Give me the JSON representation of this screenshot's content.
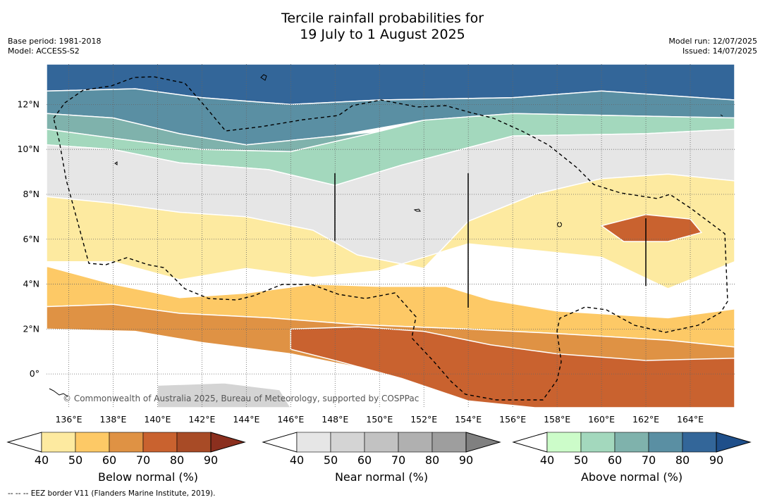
{
  "header": {
    "title_line1": "Tercile rainfall probabilities for",
    "title_line2": "19 July to 1 August 2025",
    "base_period": "Base period: 1981-2018",
    "model": "Model: ACCESS-S2",
    "model_run": "Model run: 12/07/2025",
    "issued": "Issued: 14/07/2025"
  },
  "map": {
    "lon_ticks": [
      "136°E",
      "138°E",
      "140°E",
      "142°E",
      "144°E",
      "146°E",
      "148°E",
      "150°E",
      "152°E",
      "154°E",
      "156°E",
      "158°E",
      "160°E",
      "162°E",
      "164°E"
    ],
    "lat_ticks": [
      "12°N",
      "10°N",
      "8°N",
      "6°N",
      "4°N",
      "2°N",
      "0°"
    ],
    "copyright": "© Commonwealth of Australia 2025, Bureau of Meteorology, supported by COSPPac"
  },
  "legend": {
    "ticks": [
      "40",
      "50",
      "60",
      "70",
      "80",
      "90"
    ],
    "bars": [
      {
        "label": "Below normal (%)",
        "colors": [
          "#ffffff",
          "#fdeaa0",
          "#fdc966",
          "#df9244",
          "#c9622f",
          "#a84b26",
          "#8b2f1e"
        ]
      },
      {
        "label": "Near normal (%)",
        "colors": [
          "#ffffff",
          "#e6e6e6",
          "#d4d4d4",
          "#c2c2c2",
          "#b0b0b0",
          "#9e9e9e",
          "#808080"
        ]
      },
      {
        "label": "Above normal (%)",
        "colors": [
          "#ffffff",
          "#ccfcc9",
          "#a3d8bd",
          "#7fb2ac",
          "#5a8fa3",
          "#336699",
          "#1f4f8a"
        ]
      }
    ]
  },
  "footnote": "--  --  -- EEZ border V11 (Flanders Marine Institute, 2019).",
  "chart_data": {
    "type": "heatmap",
    "title": "Tercile rainfall probabilities for 19 July to 1 August 2025",
    "xlabel": "",
    "ylabel": "",
    "xlim": [
      135,
      166
    ],
    "ylim": [
      -1.5,
      13.8
    ],
    "categories": [
      "Below normal",
      "Near normal",
      "Above normal"
    ],
    "levels": [
      40,
      50,
      60,
      70,
      80,
      90
    ],
    "regions": [
      {
        "category": "Above normal",
        "level": 80,
        "polygon": [
          [
            135,
            13.8
          ],
          [
            166,
            13.8
          ],
          [
            166,
            12.2
          ],
          [
            160,
            12.6
          ],
          [
            156,
            12.3
          ],
          [
            150,
            12.2
          ],
          [
            146,
            12.0
          ],
          [
            142,
            12.3
          ],
          [
            139,
            12.7
          ],
          [
            135,
            12.6
          ]
        ]
      },
      {
        "category": "Above normal",
        "level": 70,
        "polygon": [
          [
            135,
            12.6
          ],
          [
            139,
            12.7
          ],
          [
            142,
            12.3
          ],
          [
            146,
            12.0
          ],
          [
            150,
            12.2
          ],
          [
            156,
            12.3
          ],
          [
            160,
            12.6
          ],
          [
            166,
            12.2
          ],
          [
            166,
            11.4
          ],
          [
            161,
            11.5
          ],
          [
            156,
            11.6
          ],
          [
            152,
            11.3
          ],
          [
            148,
            10.6
          ],
          [
            144,
            10.2
          ],
          [
            141,
            10.7
          ],
          [
            138,
            11.4
          ],
          [
            135,
            11.6
          ]
        ]
      },
      {
        "category": "Above normal",
        "level": 60,
        "polygon": [
          [
            135,
            11.6
          ],
          [
            138,
            11.4
          ],
          [
            141,
            10.7
          ],
          [
            144,
            10.2
          ],
          [
            148,
            10.6
          ],
          [
            150,
            10.8
          ],
          [
            146,
            9.9
          ],
          [
            142,
            10.0
          ],
          [
            138,
            10.5
          ],
          [
            135,
            10.9
          ]
        ]
      },
      {
        "category": "Above normal",
        "level": 50,
        "polygon": [
          [
            135,
            10.9
          ],
          [
            138,
            10.5
          ],
          [
            142,
            10.0
          ],
          [
            146,
            9.9
          ],
          [
            150,
            10.8
          ],
          [
            152,
            11.3
          ],
          [
            156,
            11.6
          ],
          [
            161,
            11.5
          ],
          [
            166,
            11.4
          ],
          [
            166,
            10.9
          ],
          [
            162,
            10.7
          ],
          [
            156,
            10.6
          ],
          [
            151,
            9.3
          ],
          [
            148,
            8.4
          ],
          [
            145,
            9.1
          ],
          [
            141,
            9.4
          ],
          [
            138,
            10.0
          ],
          [
            135,
            10.2
          ]
        ]
      },
      {
        "category": "Near normal",
        "level": 40,
        "polygon": [
          [
            135,
            10.2
          ],
          [
            138,
            10.0
          ],
          [
            141,
            9.4
          ],
          [
            145,
            9.1
          ],
          [
            148,
            8.4
          ],
          [
            151,
            9.3
          ],
          [
            156,
            10.6
          ],
          [
            162,
            10.7
          ],
          [
            166,
            10.9
          ],
          [
            166,
            8.6
          ],
          [
            163,
            8.9
          ],
          [
            160,
            8.7
          ],
          [
            157,
            8.0
          ],
          [
            154,
            6.8
          ],
          [
            152,
            4.7
          ],
          [
            149,
            5.3
          ],
          [
            147,
            6.4
          ],
          [
            144,
            7.0
          ],
          [
            141,
            7.2
          ],
          [
            138,
            7.6
          ],
          [
            135,
            7.9
          ]
        ]
      },
      {
        "category": "Below normal",
        "level": 40,
        "polygon": [
          [
            135,
            7.9
          ],
          [
            138,
            7.6
          ],
          [
            141,
            7.2
          ],
          [
            144,
            7.0
          ],
          [
            147,
            6.4
          ],
          [
            149,
            5.3
          ],
          [
            152,
            4.7
          ],
          [
            154,
            6.8
          ],
          [
            157,
            8.0
          ],
          [
            160,
            8.7
          ],
          [
            163,
            8.9
          ],
          [
            166,
            8.6
          ],
          [
            166,
            5.0
          ],
          [
            163,
            3.8
          ],
          [
            160,
            5.2
          ],
          [
            157,
            5.5
          ],
          [
            154,
            5.8
          ],
          [
            150,
            4.6
          ],
          [
            147,
            4.3
          ],
          [
            144,
            4.7
          ],
          [
            141,
            4.2
          ],
          [
            138,
            5.0
          ],
          [
            135,
            5.0
          ]
        ]
      },
      {
        "category": "Below normal",
        "level": 50,
        "polygon": [
          [
            135,
            4.8
          ],
          [
            138,
            4.0
          ],
          [
            141,
            3.4
          ],
          [
            144,
            3.6
          ],
          [
            147,
            4.0
          ],
          [
            150,
            3.9
          ],
          [
            153,
            3.9
          ],
          [
            155,
            3.3
          ],
          [
            158,
            2.8
          ],
          [
            163,
            2.5
          ],
          [
            166,
            2.9
          ],
          [
            166,
            1.2
          ],
          [
            163,
            1.5
          ],
          [
            158,
            1.8
          ],
          [
            154,
            2.0
          ],
          [
            149,
            2.2
          ],
          [
            145,
            2.5
          ],
          [
            141,
            2.7
          ],
          [
            138,
            3.1
          ],
          [
            135,
            3.0
          ]
        ]
      },
      {
        "category": "Below normal",
        "level": 60,
        "polygon": [
          [
            135,
            3.0
          ],
          [
            138,
            3.1
          ],
          [
            141,
            2.7
          ],
          [
            145,
            2.5
          ],
          [
            149,
            2.2
          ],
          [
            154,
            2.0
          ],
          [
            158,
            1.8
          ],
          [
            163,
            1.5
          ],
          [
            166,
            1.2
          ],
          [
            166,
            -1.5
          ],
          [
            159,
            -1.5
          ],
          [
            154,
            -1.0
          ],
          [
            150,
            0.1
          ],
          [
            146,
            0.9
          ],
          [
            142,
            1.4
          ],
          [
            139,
            1.9
          ],
          [
            135,
            2.0
          ]
        ]
      },
      {
        "category": "Below normal",
        "level": 70,
        "polygon": [
          [
            146,
            2.0
          ],
          [
            149,
            2.1
          ],
          [
            152,
            1.9
          ],
          [
            155,
            1.3
          ],
          [
            158,
            0.9
          ],
          [
            162,
            0.6
          ],
          [
            166,
            0.7
          ],
          [
            166,
            -1.5
          ],
          [
            157,
            -1.5
          ],
          [
            154,
            -1.2
          ],
          [
            151,
            -0.2
          ],
          [
            148,
            0.6
          ],
          [
            146,
            1.1
          ]
        ]
      },
      {
        "category": "Below normal",
        "level": 70,
        "polygon": [
          [
            160,
            6.6
          ],
          [
            162,
            7.1
          ],
          [
            164,
            6.9
          ],
          [
            164.5,
            6.3
          ],
          [
            163,
            5.9
          ],
          [
            161,
            5.9
          ]
        ]
      },
      {
        "category": "Near normal",
        "level": 50,
        "polygon": [
          [
            140,
            -0.5
          ],
          [
            143,
            -0.4
          ],
          [
            145.5,
            -0.7
          ],
          [
            146,
            -1.5
          ],
          [
            140,
            -1.5
          ]
        ]
      }
    ]
  }
}
